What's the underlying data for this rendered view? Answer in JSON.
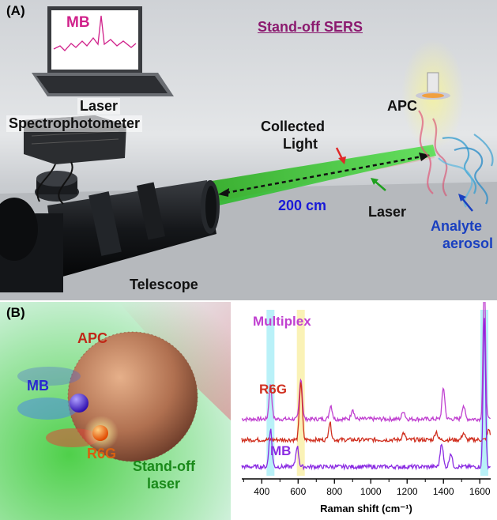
{
  "panelA": {
    "tag": "(A)",
    "title": "Stand-off SERS",
    "laptop_screen_label": "MB",
    "laser_label": "Laser",
    "spectro_label": "Spectrophotometer",
    "apc_label": "APC",
    "collected_label_1": "Collected",
    "collected_label_2": "Light",
    "distance_label": "200 cm",
    "laser_beam_label": "Laser",
    "analyte_label_1": "Analyte",
    "analyte_label_2": "aerosol",
    "telescope_label": "Telescope"
  },
  "panelB": {
    "tag": "(B)",
    "apc_label": "APC",
    "mb_label": "MB",
    "r6g_label": "R6G",
    "standoff_label_1": "Stand-off",
    "standoff_label_2": "laser"
  },
  "colors": {
    "laser_green": "#3fd13a",
    "collected_red": "#e2362e",
    "title_purple": "#8b1a6f",
    "multiplex": "#c040d0",
    "r6g": "#d03020",
    "mb": "#8a2be2",
    "highlight_cyan": "#7fe6f2",
    "highlight_yellow": "#f5e77a"
  },
  "chart_data": {
    "type": "line",
    "xlabel": "Raman shift (cm⁻¹)",
    "xlim": [
      290,
      1660
    ],
    "xticks": [
      400,
      600,
      800,
      1000,
      1200,
      1400,
      1600
    ],
    "highlight_bands": [
      {
        "center": 448,
        "color": "cyan"
      },
      {
        "center": 615,
        "color": "yellow"
      },
      {
        "center": 1625,
        "color": "cyan"
      }
    ],
    "series": [
      {
        "name": "Multiplex",
        "color": "#c040d0",
        "baseline": 0.82,
        "peaks": [
          [
            448,
            0.5
          ],
          [
            615,
            0.6
          ],
          [
            780,
            0.2
          ],
          [
            900,
            0.15
          ],
          [
            1180,
            0.12
          ],
          [
            1400,
            0.45
          ],
          [
            1510,
            0.2
          ],
          [
            1625,
            2.1
          ]
        ]
      },
      {
        "name": "R6G",
        "color": "#d03020",
        "baseline": 0.52,
        "peaks": [
          [
            615,
            0.85
          ],
          [
            775,
            0.25
          ],
          [
            1180,
            0.1
          ],
          [
            1360,
            0.12
          ],
          [
            1510,
            0.1
          ],
          [
            1650,
            0.15
          ]
        ]
      },
      {
        "name": "MB",
        "color": "#8a2be2",
        "baseline": 0.13,
        "peaks": [
          [
            448,
            0.55
          ],
          [
            595,
            0.3
          ],
          [
            1390,
            0.35
          ],
          [
            1440,
            0.2
          ],
          [
            1625,
            2.2
          ]
        ]
      }
    ]
  }
}
